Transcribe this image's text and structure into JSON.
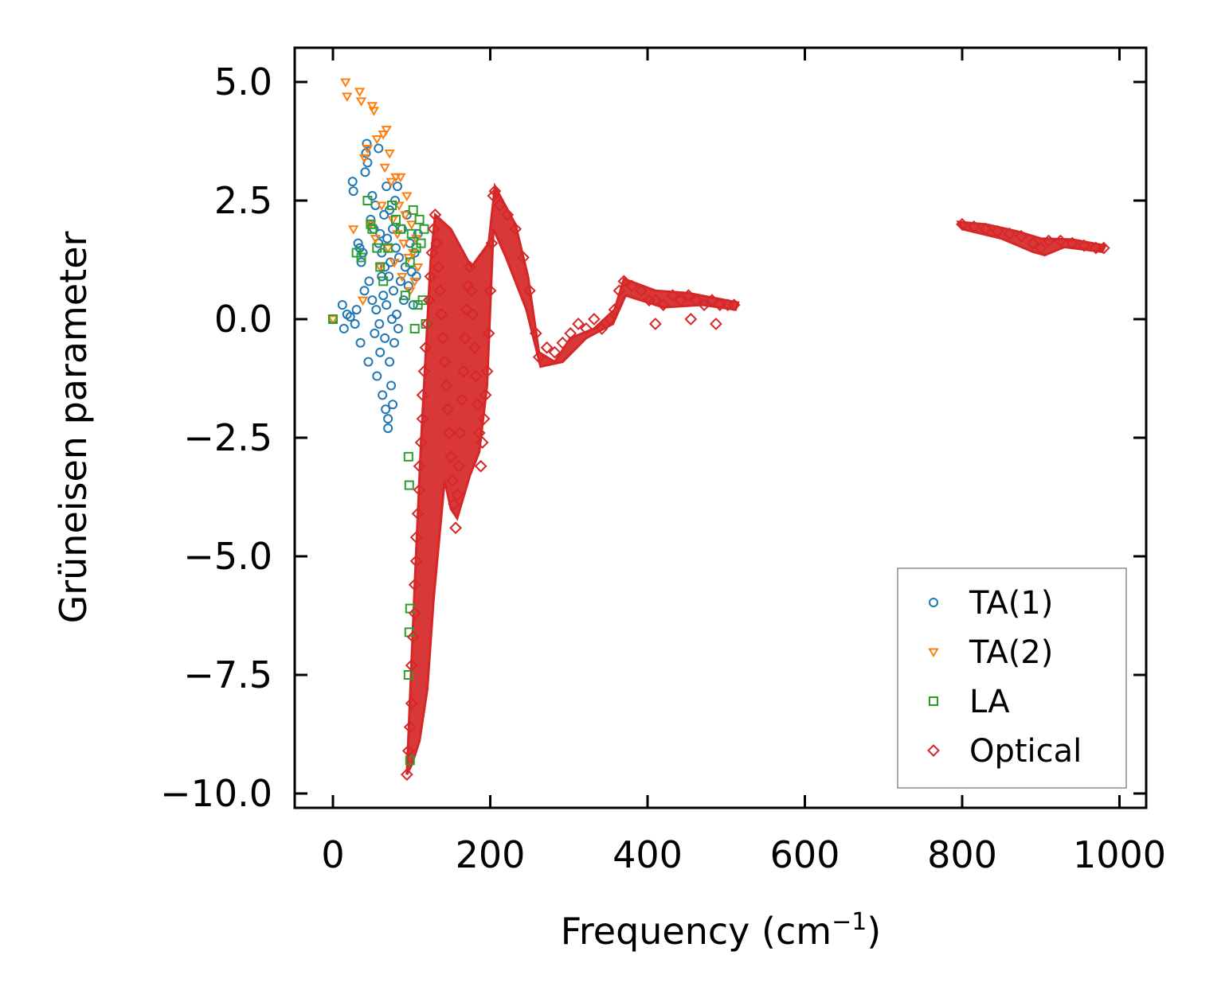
{
  "chart_data": {
    "type": "scatter",
    "xlabel": "Frequency (cm",
    "xlabel_sup": "−1",
    "xlabel_close": ")",
    "ylabel": "Grüneisen parameter",
    "xlim": [
      -50,
      1030
    ],
    "ylim": [
      -10.3,
      5.75
    ],
    "xticks": [
      0,
      200,
      400,
      600,
      800,
      1000
    ],
    "xtick_labels": [
      "0",
      "200",
      "400",
      "600",
      "800",
      "1000"
    ],
    "yticks": [
      5.0,
      2.5,
      0.0,
      -2.5,
      -5.0,
      -7.5,
      -10.0
    ],
    "ytick_labels": [
      "5.0",
      "2.5",
      "0.0",
      "−2.5",
      "−5.0",
      "−7.5",
      "−10.0"
    ],
    "legend_position": "lower-right",
    "series": [
      {
        "name": "TA(1)",
        "marker": "circle",
        "color": "#1f77b4",
        "points": [
          [
            0,
            0
          ],
          [
            12,
            0.3
          ],
          [
            14,
            -0.2
          ],
          [
            18,
            0.1
          ],
          [
            22,
            0.05
          ],
          [
            25,
            2.9
          ],
          [
            26,
            2.7
          ],
          [
            28,
            -0.1
          ],
          [
            30,
            0.2
          ],
          [
            32,
            1.6
          ],
          [
            34,
            1.5
          ],
          [
            35,
            -0.5
          ],
          [
            36,
            1.2
          ],
          [
            38,
            1.4
          ],
          [
            40,
            0.6
          ],
          [
            41,
            3.1
          ],
          [
            42,
            3.5
          ],
          [
            43,
            3.7
          ],
          [
            44,
            3.3
          ],
          [
            45,
            -0.9
          ],
          [
            46,
            0.8
          ],
          [
            48,
            2.1
          ],
          [
            50,
            2.6
          ],
          [
            50,
            0.4
          ],
          [
            52,
            1.9
          ],
          [
            53,
            -0.3
          ],
          [
            54,
            2.4
          ],
          [
            55,
            0.2
          ],
          [
            56,
            -1.2
          ],
          [
            58,
            1.6
          ],
          [
            58,
            3.6
          ],
          [
            59,
            -0.1
          ],
          [
            60,
            1.8
          ],
          [
            60,
            -0.7
          ],
          [
            62,
            0.9
          ],
          [
            62,
            1.4
          ],
          [
            63,
            -1.6
          ],
          [
            64,
            0.5
          ],
          [
            65,
            2.2
          ],
          [
            66,
            1.1
          ],
          [
            66,
            -0.4
          ],
          [
            67,
            -1.9
          ],
          [
            68,
            2.8
          ],
          [
            68,
            0.3
          ],
          [
            69,
            1.7
          ],
          [
            70,
            -2.3
          ],
          [
            70,
            -2.1
          ],
          [
            71,
            0.9
          ],
          [
            72,
            -0.9
          ],
          [
            72,
            2.3
          ],
          [
            73,
            1.2
          ],
          [
            74,
            -1.4
          ],
          [
            75,
            0.0
          ],
          [
            76,
            -1.8
          ],
          [
            76,
            1.9
          ],
          [
            77,
            0.6
          ],
          [
            78,
            -0.5
          ],
          [
            79,
            2.5
          ],
          [
            80,
            1.5
          ],
          [
            81,
            0.1
          ],
          [
            82,
            2.8
          ],
          [
            83,
            -0.2
          ],
          [
            84,
            1.3
          ],
          [
            86,
            0.8
          ],
          [
            88,
            1.9
          ],
          [
            90,
            0.4
          ],
          [
            92,
            1.1
          ],
          [
            94,
            2.2
          ],
          [
            96,
            0.7
          ],
          [
            98,
            1.6
          ],
          [
            100,
            1.0
          ],
          [
            102,
            0.3
          ],
          [
            104,
            1.4
          ],
          [
            106,
            0.9
          ],
          [
            108,
            1.8
          ]
        ]
      },
      {
        "name": "TA(2)",
        "marker": "triangle",
        "color": "#ff7f0e",
        "points": [
          [
            0,
            0
          ],
          [
            16,
            5.0
          ],
          [
            18,
            4.7
          ],
          [
            26,
            1.9
          ],
          [
            34,
            4.8
          ],
          [
            36,
            4.6
          ],
          [
            38,
            0.4
          ],
          [
            40,
            3.4
          ],
          [
            44,
            3.6
          ],
          [
            48,
            2.0
          ],
          [
            50,
            4.5
          ],
          [
            52,
            4.4
          ],
          [
            54,
            1.7
          ],
          [
            56,
            3.8
          ],
          [
            60,
            1.1
          ],
          [
            62,
            2.4
          ],
          [
            64,
            3.9
          ],
          [
            66,
            3.2
          ],
          [
            68,
            4.0
          ],
          [
            70,
            1.5
          ],
          [
            72,
            3.5
          ],
          [
            74,
            2.9
          ],
          [
            76,
            2.1
          ],
          [
            78,
            1.2
          ],
          [
            80,
            3.0
          ],
          [
            82,
            1.8
          ],
          [
            84,
            2.4
          ],
          [
            86,
            3.0
          ],
          [
            88,
            0.9
          ],
          [
            90,
            1.6
          ],
          [
            92,
            2.2
          ],
          [
            94,
            2.6
          ],
          [
            96,
            1.3
          ],
          [
            98,
            0.6
          ],
          [
            100,
            2.0
          ],
          [
            102,
            1.4
          ],
          [
            104,
            0.8
          ],
          [
            106,
            1.7
          ],
          [
            108,
            1.1
          ]
        ]
      },
      {
        "name": "LA",
        "marker": "square",
        "color": "#2ca02c",
        "points": [
          [
            0,
            0
          ],
          [
            30,
            1.4
          ],
          [
            36,
            1.3
          ],
          [
            44,
            2.5
          ],
          [
            48,
            2.0
          ],
          [
            50,
            1.9
          ],
          [
            56,
            1.5
          ],
          [
            60,
            1.1
          ],
          [
            64,
            0.8
          ],
          [
            70,
            1.5
          ],
          [
            75,
            2.4
          ],
          [
            80,
            2.1
          ],
          [
            86,
            1.9
          ],
          [
            92,
            0.5
          ],
          [
            96,
            -2.9
          ],
          [
            97,
            -3.5
          ],
          [
            98,
            -6.1
          ],
          [
            97,
            -6.6
          ],
          [
            96,
            -7.5
          ],
          [
            98,
            -9.3
          ],
          [
            98,
            1.2
          ],
          [
            100,
            1.8
          ],
          [
            102,
            2.3
          ],
          [
            104,
            -0.2
          ],
          [
            106,
            1.5
          ],
          [
            108,
            0.3
          ],
          [
            110,
            2.1
          ],
          [
            112,
            1.6
          ],
          [
            114,
            0.4
          ],
          [
            116,
            1.9
          ],
          [
            118,
            -0.1
          ]
        ]
      },
      {
        "name": "Optical",
        "marker": "diamond",
        "color": "#d62728",
        "points": [
          [
            94,
            -9.6
          ],
          [
            96,
            -9.1
          ],
          [
            98,
            -8.6
          ],
          [
            100,
            -8.1
          ],
          [
            100,
            -7.3
          ],
          [
            102,
            -6.7
          ],
          [
            104,
            -6.2
          ],
          [
            104,
            -5.6
          ],
          [
            106,
            -5.1
          ],
          [
            106,
            -4.6
          ],
          [
            108,
            -4.1
          ],
          [
            110,
            -3.6
          ],
          [
            110,
            -3.1
          ],
          [
            112,
            -2.6
          ],
          [
            114,
            -2.1
          ],
          [
            114,
            -1.6
          ],
          [
            116,
            -1.1
          ],
          [
            118,
            -0.6
          ],
          [
            120,
            -0.1
          ],
          [
            122,
            0.4
          ],
          [
            124,
            0.9
          ],
          [
            126,
            1.4
          ],
          [
            128,
            1.9
          ],
          [
            130,
            2.2
          ],
          [
            132,
            1.6
          ],
          [
            134,
            1.1
          ],
          [
            136,
            0.6
          ],
          [
            138,
            0.1
          ],
          [
            140,
            -0.4
          ],
          [
            142,
            -0.9
          ],
          [
            144,
            -1.4
          ],
          [
            146,
            -1.9
          ],
          [
            148,
            -2.4
          ],
          [
            150,
            -2.9
          ],
          [
            152,
            -3.4
          ],
          [
            154,
            -3.9
          ],
          [
            156,
            -4.4
          ],
          [
            158,
            -3.7
          ],
          [
            160,
            -3.1
          ],
          [
            162,
            -2.4
          ],
          [
            164,
            -1.7
          ],
          [
            166,
            -1.1
          ],
          [
            168,
            -0.4
          ],
          [
            170,
            0.2
          ],
          [
            172,
            0.7
          ],
          [
            174,
            1.1
          ],
          [
            176,
            0.6
          ],
          [
            178,
            0.1
          ],
          [
            180,
            -0.6
          ],
          [
            182,
            -1.2
          ],
          [
            184,
            -1.8
          ],
          [
            186,
            -2.4
          ],
          [
            188,
            -3.1
          ],
          [
            190,
            -2.6
          ],
          [
            192,
            -2.1
          ],
          [
            194,
            -1.6
          ],
          [
            196,
            -1.1
          ],
          [
            198,
            -0.3
          ],
          [
            200,
            0.6
          ],
          [
            202,
            1.6
          ],
          [
            204,
            2.6
          ],
          [
            206,
            2.7
          ],
          [
            212,
            2.4
          ],
          [
            222,
            2.2
          ],
          [
            232,
            1.9
          ],
          [
            242,
            1.3
          ],
          [
            250,
            0.6
          ],
          [
            258,
            -0.3
          ],
          [
            262,
            -0.8
          ],
          [
            272,
            -0.6
          ],
          [
            282,
            -0.7
          ],
          [
            292,
            -0.5
          ],
          [
            302,
            -0.3
          ],
          [
            312,
            -0.1
          ],
          [
            322,
            -0.2
          ],
          [
            332,
            0.0
          ],
          [
            342,
            -0.2
          ],
          [
            352,
            0.0
          ],
          [
            358,
            0.2
          ],
          [
            364,
            0.6
          ],
          [
            370,
            0.8
          ],
          [
            380,
            0.7
          ],
          [
            392,
            0.6
          ],
          [
            402,
            0.4
          ],
          [
            410,
            0.4
          ],
          [
            420,
            0.3
          ],
          [
            432,
            0.5
          ],
          [
            442,
            0.4
          ],
          [
            452,
            0.5
          ],
          [
            462,
            0.4
          ],
          [
            472,
            0.3
          ],
          [
            482,
            0.4
          ],
          [
            492,
            0.3
          ],
          [
            502,
            0.3
          ],
          [
            510,
            0.3
          ],
          [
            455,
            0.0
          ],
          [
            487,
            -0.1
          ],
          [
            410,
            -0.1
          ],
          [
            800,
            2.0
          ],
          [
            815,
            1.95
          ],
          [
            830,
            1.9
          ],
          [
            845,
            1.85
          ],
          [
            860,
            1.8
          ],
          [
            875,
            1.75
          ],
          [
            890,
            1.6
          ],
          [
            900,
            1.5
          ],
          [
            910,
            1.65
          ],
          [
            925,
            1.65
          ],
          [
            940,
            1.6
          ],
          [
            955,
            1.55
          ],
          [
            970,
            1.5
          ],
          [
            980,
            1.5
          ]
        ]
      }
    ]
  }
}
